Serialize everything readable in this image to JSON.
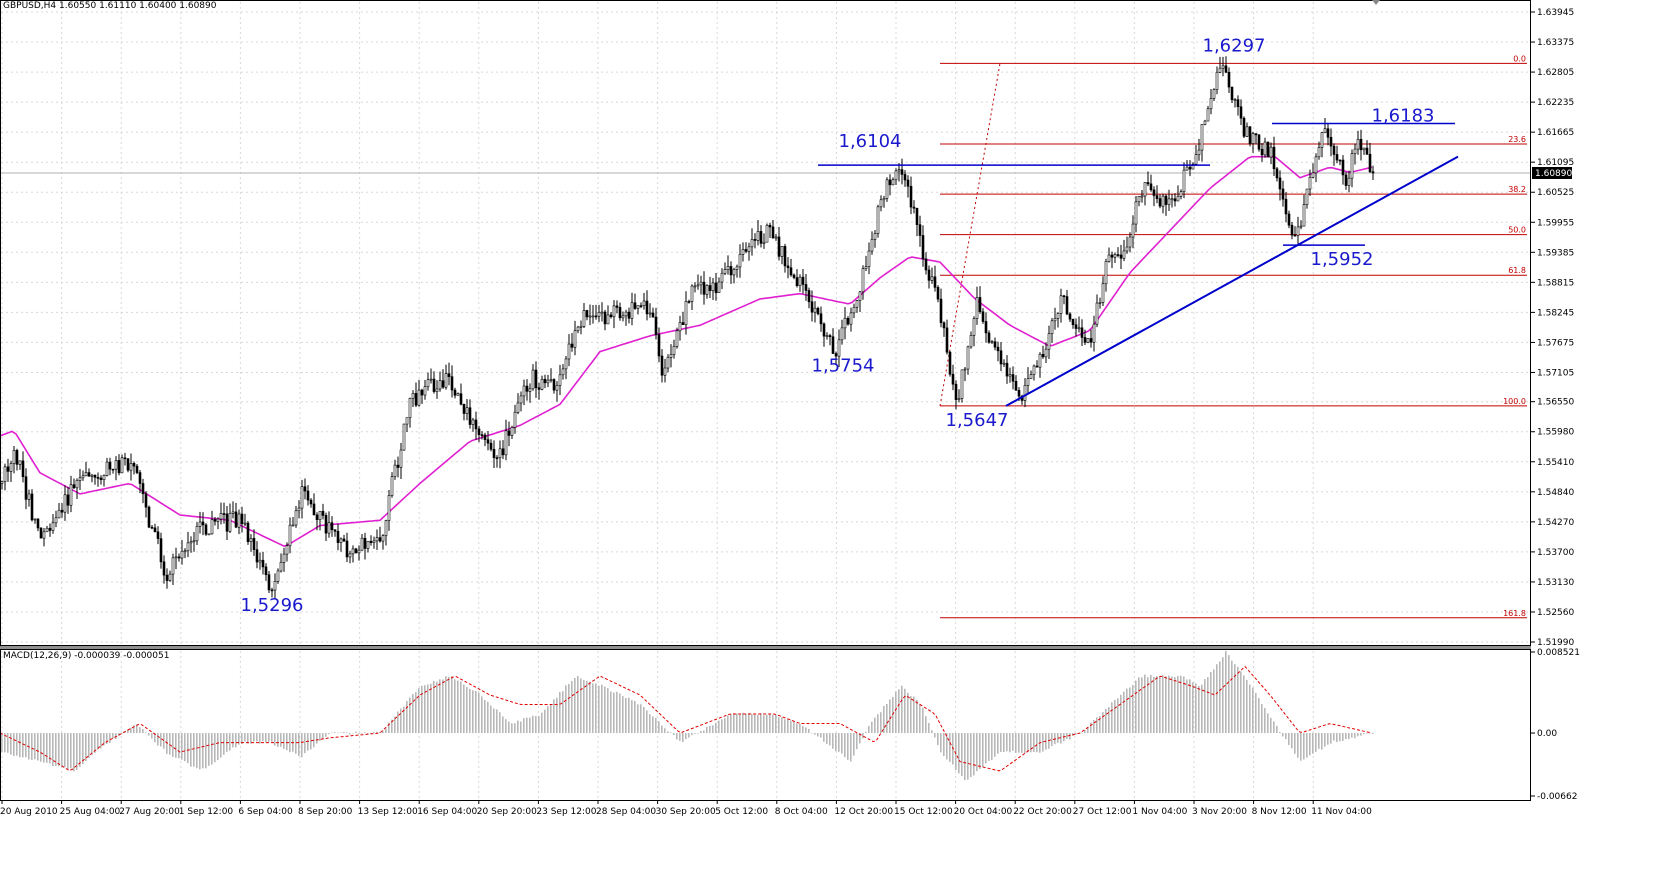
{
  "header": {
    "symbol_info": "GBPUSD,H4  1.60550 1.61110 1.60400 1.60890"
  },
  "macd_header": {
    "label": "MACD(12,26,9) -0.000039 -0.000051"
  },
  "colors": {
    "candle": "#000000",
    "moving_average": "#e020d0",
    "trendline": "#0000cc",
    "fibonacci": "#c00000",
    "macd_histogram": "#b8b8b8",
    "macd_signal": "#e00000",
    "grid": "#d8d8d8",
    "annotation_text": "#1a1acc"
  },
  "chart_data": [
    {
      "type": "candlestick",
      "symbol": "GBPUSD",
      "timeframe": "H4",
      "ohlc_header": {
        "open": 1.6055,
        "high": 1.6111,
        "low": 1.604,
        "close": 1.6089
      },
      "current_price_label": "1.60890",
      "y_ticks": [
        "1.63945",
        "1.63375",
        "1.62805",
        "1.62235",
        "1.61665",
        "1.61095",
        "1.60525",
        "1.59955",
        "1.59385",
        "1.58815",
        "1.58245",
        "1.57675",
        "1.57105",
        "1.56550",
        "1.55980",
        "1.55410",
        "1.54840",
        "1.54270",
        "1.53700",
        "1.53130",
        "1.52560",
        "1.51990"
      ],
      "ylim": [
        1.5179,
        1.6411
      ],
      "x_ticks": [
        "20 Aug 2010",
        "25 Aug 04:00",
        "27 Aug 20:00",
        "1 Sep 12:00",
        "6 Sep 04:00",
        "8 Sep 20:00",
        "13 Sep 12:00",
        "16 Sep 04:00",
        "20 Sep 20:00",
        "23 Sep 12:00",
        "28 Sep 04:00",
        "30 Sep 20:00",
        "5 Oct 12:00",
        "8 Oct 04:00",
        "12 Oct 20:00",
        "15 Oct 12:00",
        "20 Oct 04:00",
        "22 Oct 20:00",
        "27 Oct 12:00",
        "1 Nov 04:00",
        "3 Nov 20:00",
        "8 Nov 12:00",
        "11 Nov 04:00"
      ],
      "price_path_keypoints": [
        [
          0,
          1.55
        ],
        [
          14,
          1.556
        ],
        [
          40,
          1.538
        ],
        [
          75,
          1.55
        ],
        [
          130,
          1.554
        ],
        [
          165,
          1.533
        ],
        [
          200,
          1.542
        ],
        [
          240,
          1.543
        ],
        [
          272,
          1.5296
        ],
        [
          300,
          1.548
        ],
        [
          345,
          1.537
        ],
        [
          380,
          1.54
        ],
        [
          410,
          1.566
        ],
        [
          445,
          1.57
        ],
        [
          470,
          1.562
        ],
        [
          495,
          1.554
        ],
        [
          530,
          1.57
        ],
        [
          555,
          1.568
        ],
        [
          578,
          1.581
        ],
        [
          610,
          1.582
        ],
        [
          650,
          1.583
        ],
        [
          663,
          1.57
        ],
        [
          690,
          1.586
        ],
        [
          720,
          1.588
        ],
        [
          765,
          1.598
        ],
        [
          790,
          1.591
        ],
        [
          835,
          1.5754
        ],
        [
          860,
          1.588
        ],
        [
          880,
          1.604
        ],
        [
          900,
          1.6104
        ],
        [
          925,
          1.592
        ],
        [
          940,
          1.582
        ],
        [
          955,
          1.5647
        ],
        [
          975,
          1.584
        ],
        [
          1000,
          1.572
        ],
        [
          1020,
          1.566
        ],
        [
          1045,
          1.575
        ],
        [
          1060,
          1.586
        ],
        [
          1088,
          1.576
        ],
        [
          1105,
          1.591
        ],
        [
          1125,
          1.595
        ],
        [
          1140,
          1.606
        ],
        [
          1170,
          1.603
        ],
        [
          1195,
          1.613
        ],
        [
          1220,
          1.6297
        ],
        [
          1248,
          1.615
        ],
        [
          1270,
          1.613
        ],
        [
          1295,
          1.5952
        ],
        [
          1320,
          1.617
        ],
        [
          1345,
          1.608
        ],
        [
          1360,
          1.615
        ],
        [
          1372,
          1.6089
        ]
      ],
      "moving_average_keypoints": [
        [
          0,
          1.559
        ],
        [
          14,
          1.56
        ],
        [
          40,
          1.552
        ],
        [
          80,
          1.548
        ],
        [
          130,
          1.55
        ],
        [
          180,
          1.544
        ],
        [
          230,
          1.543
        ],
        [
          285,
          1.538
        ],
        [
          320,
          1.542
        ],
        [
          380,
          1.543
        ],
        [
          420,
          1.55
        ],
        [
          470,
          1.558
        ],
        [
          520,
          1.561
        ],
        [
          560,
          1.565
        ],
        [
          600,
          1.575
        ],
        [
          650,
          1.578
        ],
        [
          700,
          1.58
        ],
        [
          760,
          1.585
        ],
        [
          800,
          1.586
        ],
        [
          850,
          1.584
        ],
        [
          880,
          1.589
        ],
        [
          910,
          1.593
        ],
        [
          940,
          1.592
        ],
        [
          975,
          1.585
        ],
        [
          1010,
          1.58
        ],
        [
          1050,
          1.576
        ],
        [
          1090,
          1.579
        ],
        [
          1130,
          1.59
        ],
        [
          1170,
          1.598
        ],
        [
          1210,
          1.606
        ],
        [
          1250,
          1.612
        ],
        [
          1275,
          1.612
        ],
        [
          1300,
          1.608
        ],
        [
          1330,
          1.61
        ],
        [
          1350,
          1.609
        ],
        [
          1372,
          1.61
        ]
      ],
      "annotations": [
        {
          "label": "1,5296",
          "x": 272,
          "price": 1.5296
        },
        {
          "label": "1,5754",
          "x": 835,
          "price": 1.5754
        },
        {
          "label": "1,6104",
          "x": 900,
          "price": 1.6104
        },
        {
          "label": "1,5647",
          "x": 955,
          "price": 1.5647
        },
        {
          "label": "1,6297",
          "x": 1220,
          "price": 1.6297
        },
        {
          "label": "1,6183",
          "x": 1355,
          "price": 1.6183
        },
        {
          "label": "1,5952",
          "x": 1295,
          "price": 1.5952
        }
      ],
      "horizontal_lines": [
        {
          "price": 1.6104,
          "x_start": 818,
          "x_end": 1210
        },
        {
          "price": 1.6183,
          "x_start": 1272,
          "x_end": 1455
        },
        {
          "price": 1.5952,
          "x_start": 1283,
          "x_end": 1365
        }
      ],
      "trendline": {
        "start": [
          1006,
          1.5647
        ],
        "end": [
          1458,
          1.612
        ]
      },
      "fibonacci": {
        "high": 1.6297,
        "low": 1.5647,
        "levels": [
          {
            "label": "0.0",
            "price": 1.6297
          },
          {
            "label": "23.6",
            "price": 1.6144
          },
          {
            "label": "38.2",
            "price": 1.6049
          },
          {
            "label": "50.0",
            "price": 1.5972
          },
          {
            "label": "61.8",
            "price": 1.5895
          },
          {
            "label": "100.0",
            "price": 1.5647
          },
          {
            "label": "161.8",
            "price": 1.5245
          }
        ],
        "x_start": 940,
        "x_end": 1527,
        "dotted_link": {
          "start": [
            940,
            1.5647
          ],
          "end": [
            1000,
            1.6297
          ]
        }
      }
    },
    {
      "type": "bar",
      "title": "MACD(12,26,9)",
      "macd_value": -3.9e-05,
      "signal_value": -5.1e-05,
      "y_ticks": [
        "0.008521",
        "0.00",
        "-0.00662"
      ],
      "ylim": [
        -0.0071,
        0.0089
      ],
      "histogram_keypoints": [
        [
          0,
          -0.002
        ],
        [
          40,
          -0.003
        ],
        [
          75,
          -0.004
        ],
        [
          95,
          -0.002
        ],
        [
          135,
          0.001
        ],
        [
          165,
          -0.002
        ],
        [
          200,
          -0.004
        ],
        [
          240,
          -0.001
        ],
        [
          270,
          -0.001
        ],
        [
          300,
          -0.0025
        ],
        [
          330,
          0.0
        ],
        [
          380,
          0.0
        ],
        [
          420,
          0.005
        ],
        [
          450,
          0.006
        ],
        [
          480,
          0.004
        ],
        [
          510,
          0.001
        ],
        [
          540,
          0.002
        ],
        [
          575,
          0.006
        ],
        [
          600,
          0.005
        ],
        [
          640,
          0.003
        ],
        [
          680,
          -0.001
        ],
        [
          730,
          0.002
        ],
        [
          770,
          0.002
        ],
        [
          800,
          0.001
        ],
        [
          850,
          -0.003
        ],
        [
          870,
          0.001
        ],
        [
          900,
          0.005
        ],
        [
          920,
          0.003
        ],
        [
          940,
          -0.002
        ],
        [
          965,
          -0.005
        ],
        [
          1000,
          -0.002
        ],
        [
          1040,
          -0.002
        ],
        [
          1080,
          0.0
        ],
        [
          1110,
          0.003
        ],
        [
          1140,
          0.006
        ],
        [
          1180,
          0.006
        ],
        [
          1200,
          0.005
        ],
        [
          1225,
          0.0085
        ],
        [
          1250,
          0.005
        ],
        [
          1280,
          0.0
        ],
        [
          1300,
          -0.003
        ],
        [
          1330,
          -0.001
        ],
        [
          1372,
          0.0
        ]
      ],
      "signal_keypoints": [
        [
          0,
          0.0
        ],
        [
          40,
          -0.002
        ],
        [
          70,
          -0.004
        ],
        [
          105,
          -0.001
        ],
        [
          140,
          0.001
        ],
        [
          180,
          -0.002
        ],
        [
          220,
          -0.001
        ],
        [
          270,
          -0.001
        ],
        [
          300,
          -0.001
        ],
        [
          330,
          -0.0005
        ],
        [
          380,
          0.0
        ],
        [
          420,
          0.004
        ],
        [
          455,
          0.006
        ],
        [
          490,
          0.004
        ],
        [
          520,
          0.003
        ],
        [
          560,
          0.003
        ],
        [
          600,
          0.006
        ],
        [
          640,
          0.004
        ],
        [
          680,
          0.0
        ],
        [
          730,
          0.002
        ],
        [
          775,
          0.002
        ],
        [
          800,
          0.001
        ],
        [
          840,
          0.001
        ],
        [
          875,
          -0.001
        ],
        [
          905,
          0.004
        ],
        [
          935,
          0.002
        ],
        [
          960,
          -0.003
        ],
        [
          1000,
          -0.004
        ],
        [
          1040,
          -0.001
        ],
        [
          1080,
          0.0
        ],
        [
          1120,
          0.003
        ],
        [
          1160,
          0.006
        ],
        [
          1190,
          0.005
        ],
        [
          1215,
          0.004
        ],
        [
          1245,
          0.007
        ],
        [
          1270,
          0.004
        ],
        [
          1300,
          0.0
        ],
        [
          1330,
          0.001
        ],
        [
          1372,
          0.0
        ]
      ]
    }
  ]
}
